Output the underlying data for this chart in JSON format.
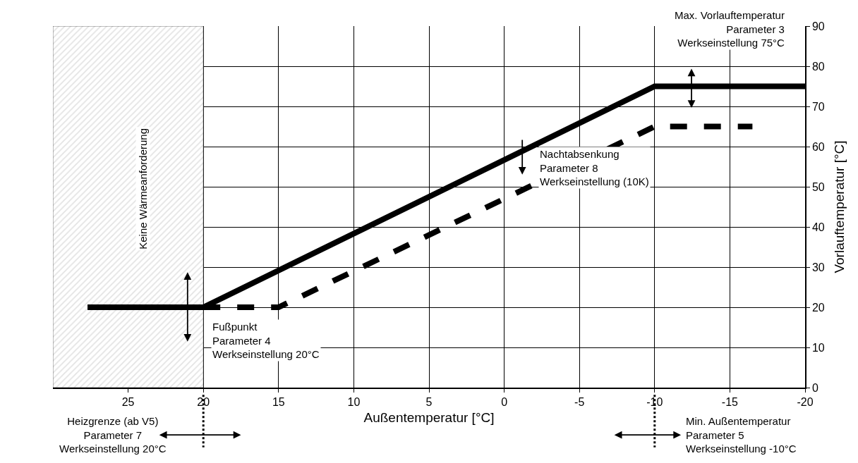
{
  "chart_data": {
    "type": "line",
    "xlabel": "Außentemperatur [°C]",
    "ylabel": "Vorlauftemperatur [°C]",
    "xlim": [
      30,
      -20
    ],
    "xticks": [
      25,
      20,
      15,
      10,
      5,
      0,
      -5,
      -10,
      -15,
      -20
    ],
    "ylim": [
      0,
      90
    ],
    "yticks": [
      0,
      10,
      20,
      30,
      40,
      50,
      60,
      70,
      80,
      90
    ],
    "grid": true,
    "marker": "none",
    "series": [
      {
        "color": "#000000",
        "x": [
          27.7,
          20,
          -10,
          -20
        ],
        "values": [
          20,
          20,
          75,
          75
        ],
        "line_style": "solid"
      },
      {
        "color": "#000000",
        "x": [
          20,
          15,
          -10,
          -16.5
        ],
        "values": [
          20,
          20,
          65,
          65
        ],
        "line_style": "dashed"
      }
    ],
    "bands": [
      {
        "axis": "x",
        "from": 30,
        "to": 20,
        "label": "Keine Wärmeanforderung",
        "color": "#c8c8c8"
      }
    ],
    "annotations": [
      "Max. Vorlauftemperatur\nParameter 3\nWerkseinstellung 75°C",
      "Nachtabsenkung\nParameter 8\nWerkseinstellung (10K)",
      "Fußpunkt\nParameter 4\nWerkseinstellung 20°C",
      "Heizgrenze (ab V5)\nParameter 7\nWerkseinstellung 20°C",
      "Min. Außentemperatur\nParameter 5\nWerkseinstellung -10°C"
    ]
  }
}
